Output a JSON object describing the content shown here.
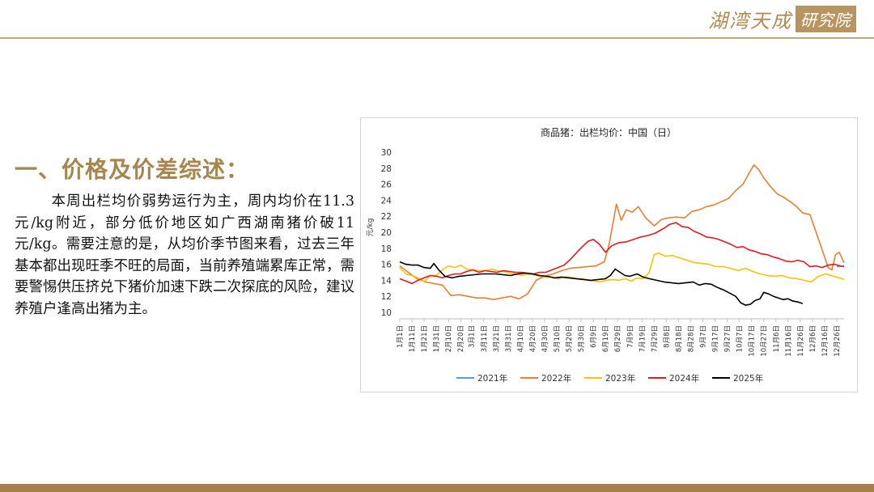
{
  "logo": {
    "text": "湖湾天成",
    "box": "研究院"
  },
  "heading": "一、价格及价差综述：",
  "paragraph": "本周出栏均价弱势运行为主，周内均价在11.3元/kg附近，部分低价地区如广西湖南猪价破11元/kg。需要注意的是，从均价季节图来看，过去三年基本都出现旺季不旺的局面，当前养殖端累库正常，需要警惕供压挤兑下猪价加速下跌二次探底的风险，建议养殖户逢高出猪为主。",
  "colors": {
    "accent": "#a7854d",
    "rule": "#c2a57a",
    "band": "#a58048"
  },
  "chart_data": {
    "type": "line",
    "title": "商品猪：出栏均价：中国（日）",
    "ylabel": "元/kg",
    "xlabel": "",
    "ylim": [
      10,
      30
    ],
    "yticks": [
      10,
      12,
      14,
      16,
      18,
      20,
      22,
      24,
      26,
      28,
      30
    ],
    "x_day_range": [
      1,
      366
    ],
    "x_ticks": [
      {
        "label": "1月1日",
        "day": 1
      },
      {
        "label": "1月11日",
        "day": 11
      },
      {
        "label": "1月21日",
        "day": 21
      },
      {
        "label": "1月31日",
        "day": 31
      },
      {
        "label": "2月10日",
        "day": 41
      },
      {
        "label": "2月20日",
        "day": 51
      },
      {
        "label": "3月1日",
        "day": 60
      },
      {
        "label": "3月11日",
        "day": 70
      },
      {
        "label": "3月21日",
        "day": 80
      },
      {
        "label": "3月31日",
        "day": 90
      },
      {
        "label": "4月10日",
        "day": 100
      },
      {
        "label": "4月20日",
        "day": 110
      },
      {
        "label": "4月30日",
        "day": 120
      },
      {
        "label": "5月10日",
        "day": 130
      },
      {
        "label": "5月20日",
        "day": 140
      },
      {
        "label": "5月30日",
        "day": 150
      },
      {
        "label": "6月9日",
        "day": 160
      },
      {
        "label": "6月19日",
        "day": 170
      },
      {
        "label": "6月29日",
        "day": 180
      },
      {
        "label": "7月9日",
        "day": 190
      },
      {
        "label": "7月19日",
        "day": 200
      },
      {
        "label": "7月29日",
        "day": 210
      },
      {
        "label": "8月8日",
        "day": 220
      },
      {
        "label": "8月18日",
        "day": 230
      },
      {
        "label": "8月28日",
        "day": 240
      },
      {
        "label": "9月7日",
        "day": 250
      },
      {
        "label": "9月17日",
        "day": 260
      },
      {
        "label": "9月27日",
        "day": 270
      },
      {
        "label": "10月7日",
        "day": 280
      },
      {
        "label": "10月17日",
        "day": 290
      },
      {
        "label": "10月27日",
        "day": 300
      },
      {
        "label": "11月6日",
        "day": 310
      },
      {
        "label": "11月16日",
        "day": 320
      },
      {
        "label": "11月26日",
        "day": 330
      },
      {
        "label": "12月6日",
        "day": 340
      },
      {
        "label": "12月16日",
        "day": 350
      },
      {
        "label": "12月26日",
        "day": 360
      }
    ],
    "legend_position": "bottom",
    "series": [
      {
        "name": "2021年",
        "color": "#5b9bd5",
        "points": [
          [
            360,
            15.7
          ],
          [
            366,
            15.8
          ]
        ]
      },
      {
        "name": "2022年",
        "color": "#ed7d31",
        "points": [
          [
            1,
            15.8
          ],
          [
            8,
            15.0
          ],
          [
            15,
            14.2
          ],
          [
            22,
            13.8
          ],
          [
            29,
            13.6
          ],
          [
            36,
            13.4
          ],
          [
            43,
            12.1
          ],
          [
            50,
            12.2
          ],
          [
            57,
            12.0
          ],
          [
            64,
            11.8
          ],
          [
            71,
            11.8
          ],
          [
            78,
            11.6
          ],
          [
            85,
            11.8
          ],
          [
            92,
            12.0
          ],
          [
            99,
            11.7
          ],
          [
            106,
            12.3
          ],
          [
            113,
            14.0
          ],
          [
            120,
            14.5
          ],
          [
            127,
            14.8
          ],
          [
            134,
            15.2
          ],
          [
            141,
            15.5
          ],
          [
            148,
            15.6
          ],
          [
            155,
            15.7
          ],
          [
            162,
            15.8
          ],
          [
            169,
            16.3
          ],
          [
            173,
            18.5
          ],
          [
            176,
            21.0
          ],
          [
            179,
            23.5
          ],
          [
            183,
            21.5
          ],
          [
            187,
            22.8
          ],
          [
            192,
            22.5
          ],
          [
            197,
            23.2
          ],
          [
            203,
            21.8
          ],
          [
            210,
            20.8
          ],
          [
            216,
            21.6
          ],
          [
            222,
            21.8
          ],
          [
            228,
            21.9
          ],
          [
            235,
            21.8
          ],
          [
            241,
            22.6
          ],
          [
            247,
            22.8
          ],
          [
            253,
            23.2
          ],
          [
            259,
            23.4
          ],
          [
            265,
            23.8
          ],
          [
            271,
            24.2
          ],
          [
            277,
            25.2
          ],
          [
            283,
            26.0
          ],
          [
            288,
            27.4
          ],
          [
            292,
            28.4
          ],
          [
            296,
            27.8
          ],
          [
            300,
            26.8
          ],
          [
            305,
            25.8
          ],
          [
            311,
            24.8
          ],
          [
            316,
            24.4
          ],
          [
            322,
            23.8
          ],
          [
            327,
            23.2
          ],
          [
            332,
            22.4
          ],
          [
            338,
            22.2
          ],
          [
            343,
            20.0
          ],
          [
            348,
            17.8
          ],
          [
            353,
            15.6
          ],
          [
            356,
            15.3
          ],
          [
            359,
            17.2
          ],
          [
            362,
            17.5
          ],
          [
            366,
            16.2
          ]
        ]
      },
      {
        "name": "2023年",
        "color": "#ffc000",
        "points": [
          [
            1,
            15.6
          ],
          [
            6,
            14.8
          ],
          [
            11,
            14.6
          ],
          [
            16,
            14.3
          ],
          [
            21,
            13.8
          ],
          [
            26,
            14.6
          ],
          [
            31,
            14.6
          ],
          [
            36,
            15.3
          ],
          [
            41,
            15.8
          ],
          [
            46,
            15.6
          ],
          [
            51,
            15.9
          ],
          [
            56,
            15.4
          ],
          [
            61,
            15.3
          ],
          [
            66,
            15.2
          ],
          [
            71,
            15.2
          ],
          [
            76,
            15.4
          ],
          [
            81,
            15.2
          ],
          [
            86,
            15.1
          ],
          [
            91,
            14.9
          ],
          [
            96,
            14.8
          ],
          [
            101,
            14.6
          ],
          [
            106,
            14.8
          ],
          [
            111,
            14.7
          ],
          [
            116,
            14.5
          ],
          [
            121,
            14.4
          ],
          [
            126,
            14.4
          ],
          [
            131,
            14.2
          ],
          [
            136,
            14.4
          ],
          [
            141,
            14.4
          ],
          [
            146,
            14.2
          ],
          [
            151,
            14.2
          ],
          [
            156,
            14.0
          ],
          [
            161,
            13.9
          ],
          [
            166,
            13.8
          ],
          [
            171,
            14.0
          ],
          [
            176,
            14.1
          ],
          [
            181,
            14.0
          ],
          [
            186,
            14.2
          ],
          [
            191,
            13.9
          ],
          [
            196,
            14.3
          ],
          [
            201,
            14.2
          ],
          [
            206,
            15.0
          ],
          [
            210,
            17.2
          ],
          [
            214,
            17.4
          ],
          [
            219,
            17.0
          ],
          [
            225,
            17.1
          ],
          [
            231,
            16.8
          ],
          [
            237,
            16.5
          ],
          [
            243,
            16.2
          ],
          [
            249,
            16.1
          ],
          [
            255,
            16.0
          ],
          [
            261,
            15.7
          ],
          [
            267,
            15.7
          ],
          [
            273,
            15.5
          ],
          [
            279,
            15.2
          ],
          [
            285,
            15.5
          ],
          [
            291,
            15.1
          ],
          [
            297,
            14.8
          ],
          [
            303,
            14.6
          ],
          [
            309,
            14.5
          ],
          [
            315,
            14.6
          ],
          [
            321,
            14.3
          ],
          [
            327,
            14.2
          ],
          [
            333,
            14.0
          ],
          [
            339,
            13.8
          ],
          [
            345,
            14.5
          ],
          [
            351,
            14.8
          ],
          [
            357,
            14.5
          ],
          [
            362,
            14.3
          ],
          [
            366,
            14.1
          ]
        ]
      },
      {
        "name": "2024年",
        "color": "#e8191e",
        "points": [
          [
            1,
            14.2
          ],
          [
            6,
            13.9
          ],
          [
            11,
            13.6
          ],
          [
            16,
            14.0
          ],
          [
            21,
            14.3
          ],
          [
            26,
            14.6
          ],
          [
            31,
            14.5
          ],
          [
            36,
            14.3
          ],
          [
            41,
            14.6
          ],
          [
            46,
            14.8
          ],
          [
            51,
            14.8
          ],
          [
            56,
            15.1
          ],
          [
            61,
            15.3
          ],
          [
            66,
            15.0
          ],
          [
            71,
            15.2
          ],
          [
            76,
            15.1
          ],
          [
            81,
            15.0
          ],
          [
            86,
            15.2
          ],
          [
            91,
            15.1
          ],
          [
            96,
            15.0
          ],
          [
            101,
            15.0
          ],
          [
            106,
            14.9
          ],
          [
            111,
            14.8
          ],
          [
            116,
            15.0
          ],
          [
            121,
            15.0
          ],
          [
            126,
            15.3
          ],
          [
            131,
            15.6
          ],
          [
            136,
            15.9
          ],
          [
            141,
            16.6
          ],
          [
            146,
            17.4
          ],
          [
            151,
            18.2
          ],
          [
            156,
            18.9
          ],
          [
            160,
            19.1
          ],
          [
            165,
            18.5
          ],
          [
            170,
            17.5
          ],
          [
            175,
            18.3
          ],
          [
            181,
            18.7
          ],
          [
            187,
            18.8
          ],
          [
            193,
            19.1
          ],
          [
            199,
            19.4
          ],
          [
            205,
            19.6
          ],
          [
            211,
            19.9
          ],
          [
            217,
            20.4
          ],
          [
            223,
            21.0
          ],
          [
            228,
            21.2
          ],
          [
            233,
            20.7
          ],
          [
            238,
            20.6
          ],
          [
            243,
            20.1
          ],
          [
            248,
            19.8
          ],
          [
            253,
            19.4
          ],
          [
            258,
            19.3
          ],
          [
            263,
            19.1
          ],
          [
            268,
            18.8
          ],
          [
            273,
            18.5
          ],
          [
            278,
            18.1
          ],
          [
            283,
            18.2
          ],
          [
            288,
            17.8
          ],
          [
            293,
            17.6
          ],
          [
            298,
            17.3
          ],
          [
            303,
            17.2
          ],
          [
            308,
            16.9
          ],
          [
            313,
            16.7
          ],
          [
            318,
            16.4
          ],
          [
            323,
            16.3
          ],
          [
            328,
            16.5
          ],
          [
            333,
            16.3
          ],
          [
            338,
            15.7
          ],
          [
            343,
            15.8
          ],
          [
            348,
            15.6
          ],
          [
            353,
            15.9
          ],
          [
            358,
            16.0
          ],
          [
            363,
            15.8
          ],
          [
            366,
            15.7
          ]
        ]
      },
      {
        "name": "2025年",
        "color": "#000000",
        "points": [
          [
            1,
            16.3
          ],
          [
            6,
            16.0
          ],
          [
            11,
            15.9
          ],
          [
            16,
            15.9
          ],
          [
            21,
            15.6
          ],
          [
            26,
            15.5
          ],
          [
            29,
            16.1
          ],
          [
            33,
            15.3
          ],
          [
            38,
            14.5
          ],
          [
            44,
            14.3
          ],
          [
            50,
            14.5
          ],
          [
            56,
            14.6
          ],
          [
            62,
            14.7
          ],
          [
            68,
            14.8
          ],
          [
            74,
            14.8
          ],
          [
            80,
            14.8
          ],
          [
            86,
            14.7
          ],
          [
            92,
            14.6
          ],
          [
            98,
            14.8
          ],
          [
            104,
            14.9
          ],
          [
            110,
            14.8
          ],
          [
            116,
            14.6
          ],
          [
            122,
            14.5
          ],
          [
            128,
            14.3
          ],
          [
            134,
            14.4
          ],
          [
            140,
            14.3
          ],
          [
            146,
            14.2
          ],
          [
            152,
            14.1
          ],
          [
            158,
            14.0
          ],
          [
            164,
            14.1
          ],
          [
            170,
            14.2
          ],
          [
            174,
            14.6
          ],
          [
            178,
            15.4
          ],
          [
            182,
            15.0
          ],
          [
            186,
            14.6
          ],
          [
            190,
            14.5
          ],
          [
            196,
            14.8
          ],
          [
            201,
            14.4
          ],
          [
            206,
            14.2
          ],
          [
            212,
            14.0
          ],
          [
            218,
            13.8
          ],
          [
            224,
            13.7
          ],
          [
            230,
            13.6
          ],
          [
            236,
            13.7
          ],
          [
            242,
            13.8
          ],
          [
            247,
            13.4
          ],
          [
            252,
            13.6
          ],
          [
            257,
            13.5
          ],
          [
            262,
            13.1
          ],
          [
            267,
            12.8
          ],
          [
            272,
            12.4
          ],
          [
            277,
            12.0
          ],
          [
            281,
            11.2
          ],
          [
            285,
            10.9
          ],
          [
            289,
            11.0
          ],
          [
            293,
            11.5
          ],
          [
            297,
            11.7
          ],
          [
            300,
            12.5
          ],
          [
            304,
            12.3
          ],
          [
            308,
            12.0
          ],
          [
            312,
            11.8
          ],
          [
            316,
            11.6
          ],
          [
            320,
            11.7
          ],
          [
            324,
            11.4
          ],
          [
            328,
            11.3
          ],
          [
            332,
            11.1
          ]
        ]
      }
    ]
  }
}
